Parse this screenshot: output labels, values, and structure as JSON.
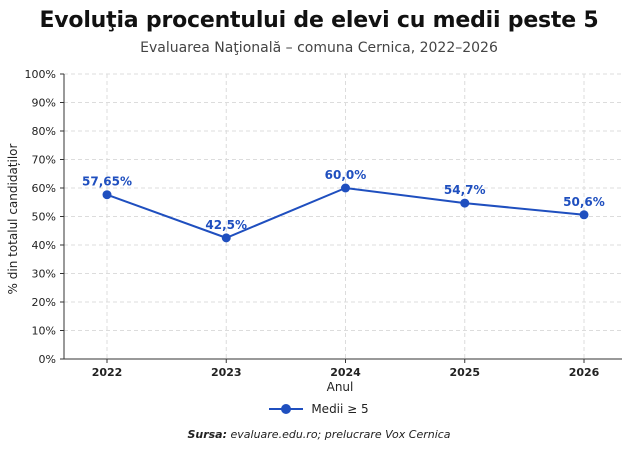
{
  "chart_data": {
    "type": "line",
    "title": "Evoluţia procentului de elevi cu medii peste 5",
    "subtitle": "Evaluarea Naţională – comuna Cernica, 2022–2026",
    "xlabel": "Anul",
    "ylabel": "% din totalul candidaților",
    "categories": [
      "2022",
      "2023",
      "2024",
      "2025",
      "2026"
    ],
    "series": [
      {
        "name": "Medii ≥ 5",
        "color": "#1f4fbf",
        "values": [
          57.65,
          42.5,
          60.0,
          54.7,
          50.6
        ],
        "labels": [
          "57,65%",
          "42,5%",
          "60,0%",
          "54,7%",
          "50,6%"
        ]
      }
    ],
    "ylim": [
      0,
      100
    ],
    "yticks": [
      "0%",
      "10%",
      "20%",
      "30%",
      "40%",
      "50%",
      "60%",
      "70%",
      "80%",
      "90%",
      "100%"
    ],
    "grid": true,
    "legend_position": "bottom-center"
  },
  "source": {
    "label": "Sursa:",
    "text": "evaluare.edu.ro; prelucrare Vox Cernica"
  }
}
